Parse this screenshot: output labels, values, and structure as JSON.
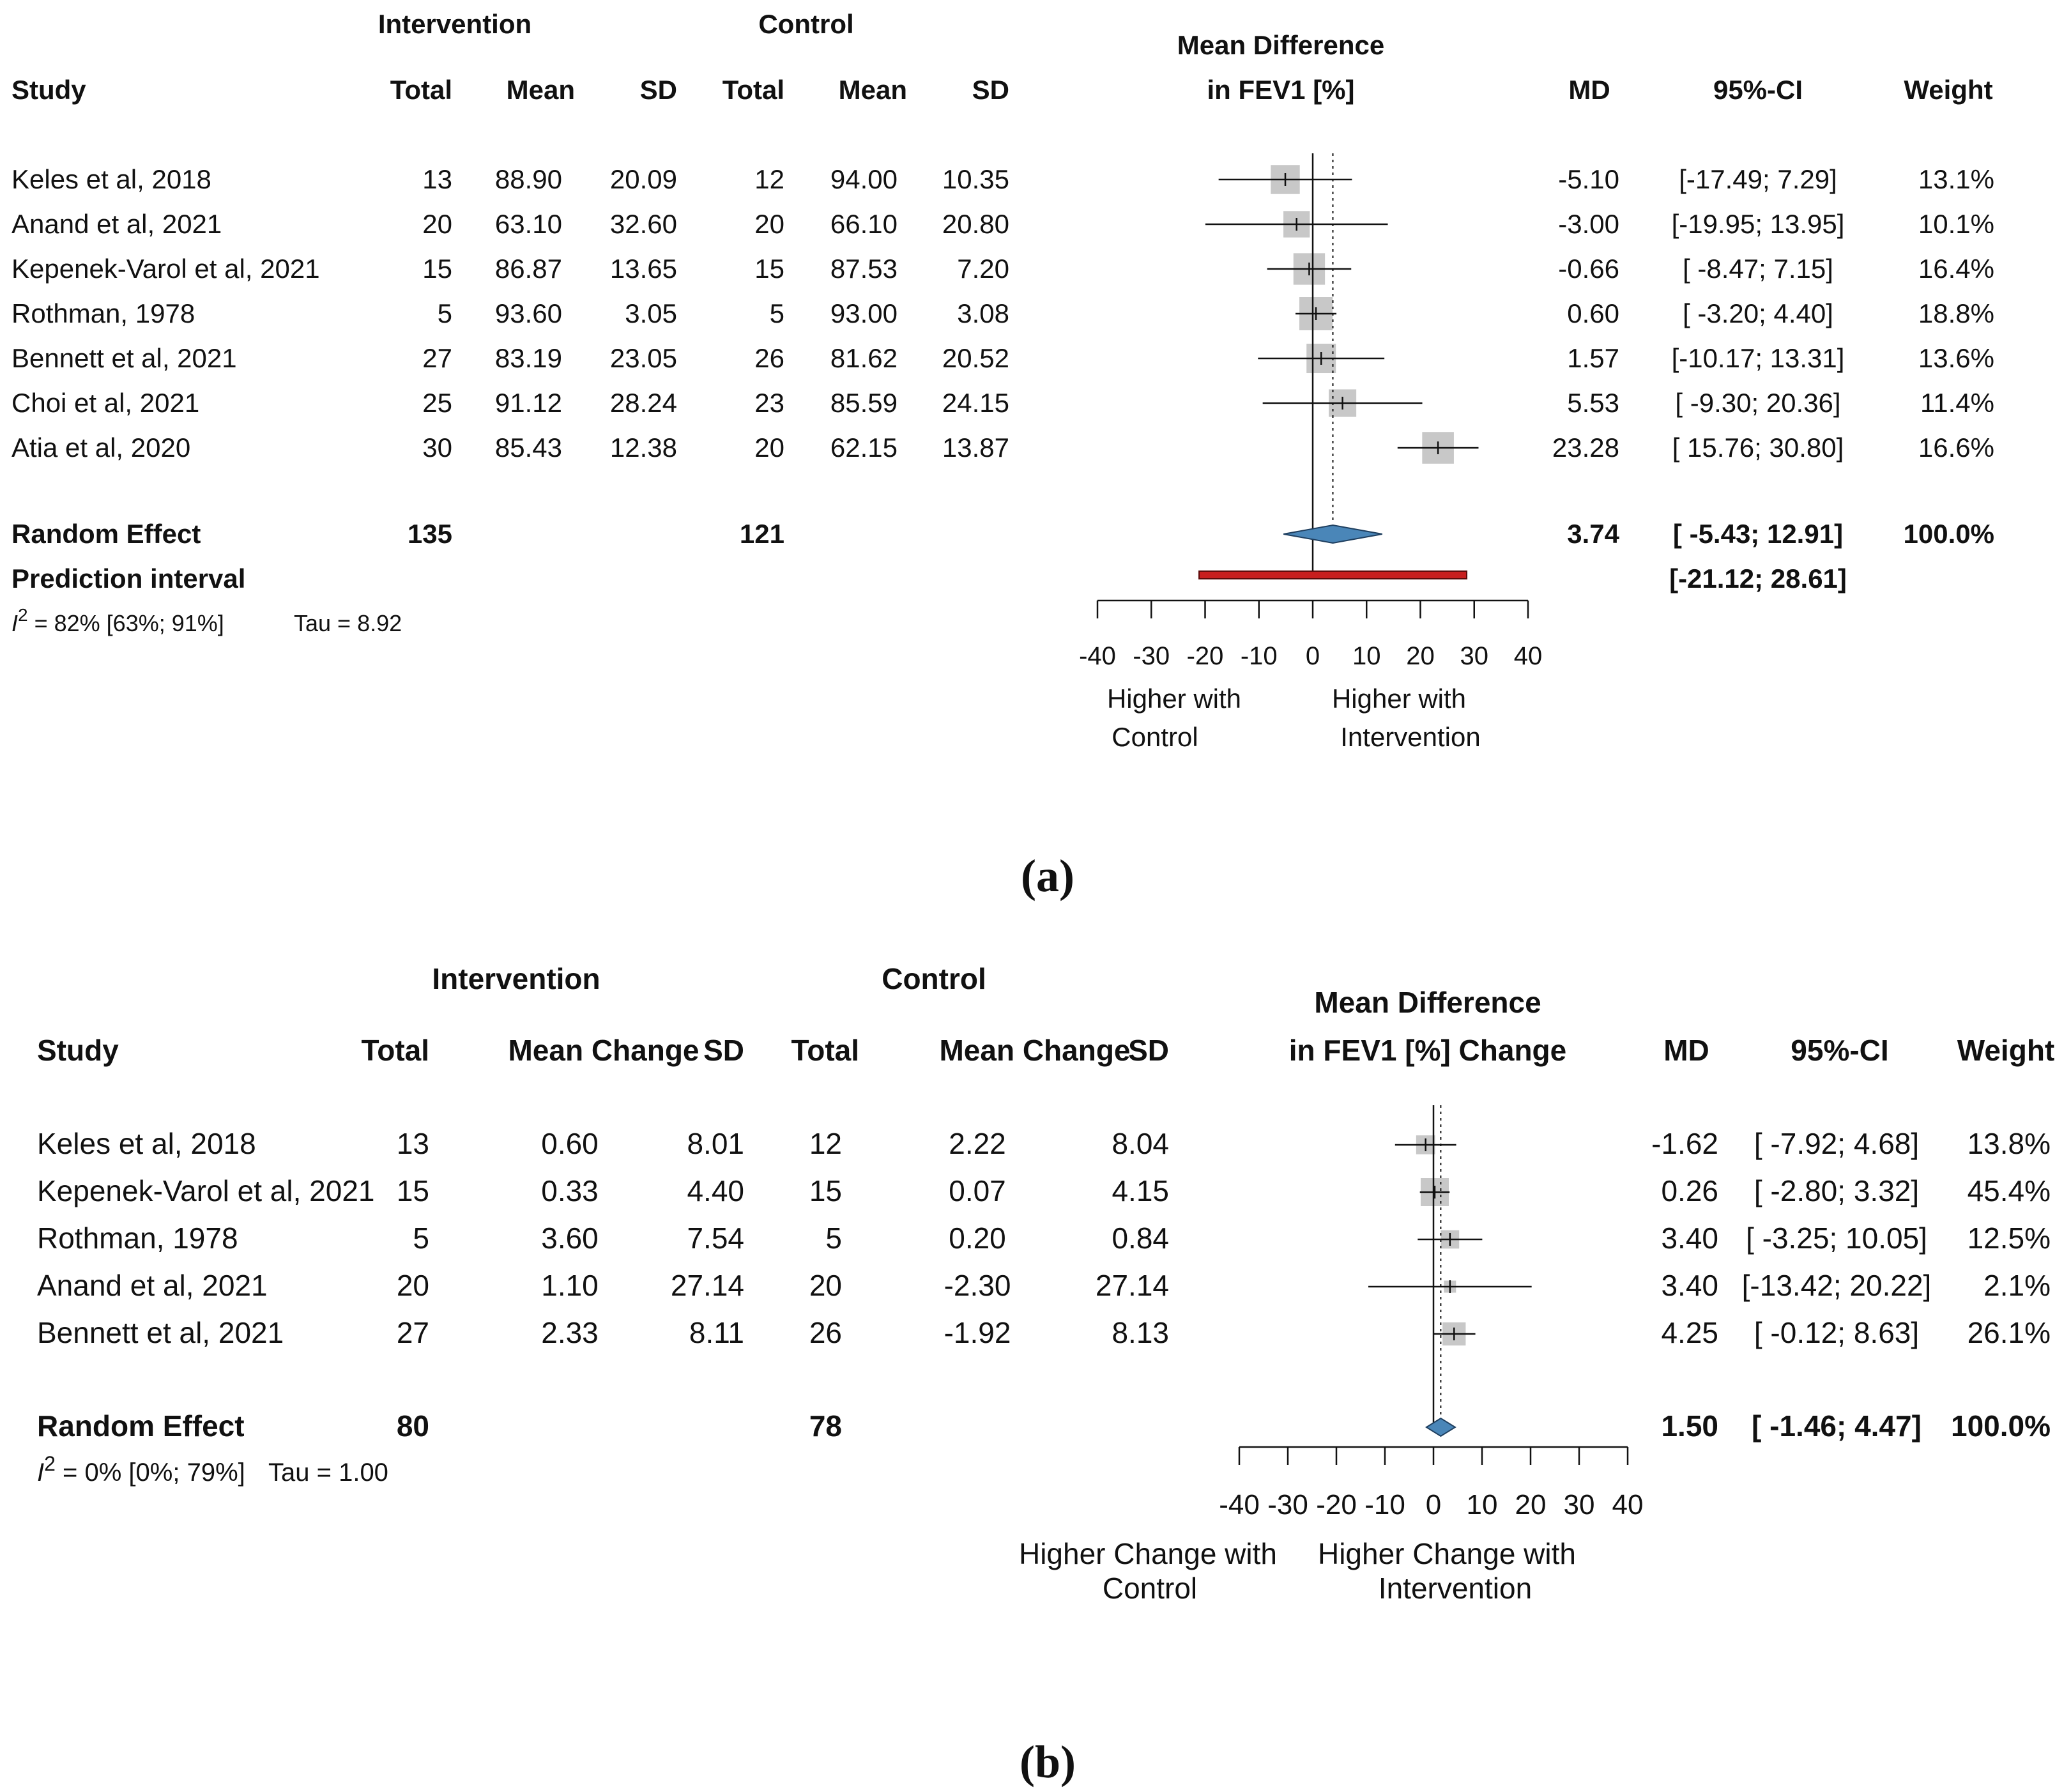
{
  "chart_data": [
    {
      "type": "forest",
      "panel_label": "(a)",
      "group_headers": [
        "Intervention",
        "Control"
      ],
      "columns": [
        "Study",
        "Total",
        "Mean",
        "SD",
        "Total",
        "Mean",
        "SD"
      ],
      "plot_title": [
        "Mean Difference",
        "in FEV1 [%]"
      ],
      "result_columns": [
        "MD",
        "95%-CI",
        "Weight"
      ],
      "studies": [
        {
          "study": "Keles et al, 2018",
          "int_total": "13",
          "int_mean": "88.90",
          "int_sd": "20.09",
          "ctl_total": "12",
          "ctl_mean": "94.00",
          "ctl_sd": "10.35",
          "md": -5.1,
          "lo": -17.49,
          "hi": 7.29,
          "weight": 13.1,
          "md_text": "-5.10",
          "ci_text": "[-17.49;  7.29]",
          "weight_text": "13.1%"
        },
        {
          "study": "Anand et al, 2021",
          "int_total": "20",
          "int_mean": "63.10",
          "int_sd": "32.60",
          "ctl_total": "20",
          "ctl_mean": "66.10",
          "ctl_sd": "20.80",
          "md": -3.0,
          "lo": -19.95,
          "hi": 13.95,
          "weight": 10.1,
          "md_text": "-3.00",
          "ci_text": "[-19.95; 13.95]",
          "weight_text": "10.1%"
        },
        {
          "study": "Kepenek-Varol et al, 2021",
          "int_total": "15",
          "int_mean": "86.87",
          "int_sd": "13.65",
          "ctl_total": "15",
          "ctl_mean": "87.53",
          "ctl_sd": "7.20",
          "md": -0.66,
          "lo": -8.47,
          "hi": 7.15,
          "weight": 16.4,
          "md_text": "-0.66",
          "ci_text": "[ -8.47;  7.15]",
          "weight_text": "16.4%"
        },
        {
          "study": "Rothman, 1978",
          "int_total": "5",
          "int_mean": "93.60",
          "int_sd": "3.05",
          "ctl_total": "5",
          "ctl_mean": "93.00",
          "ctl_sd": "3.08",
          "md": 0.6,
          "lo": -3.2,
          "hi": 4.4,
          "weight": 18.8,
          "md_text": "0.60",
          "ci_text": "[ -3.20;  4.40]",
          "weight_text": "18.8%"
        },
        {
          "study": "Bennett et al, 2021",
          "int_total": "27",
          "int_mean": "83.19",
          "int_sd": "23.05",
          "ctl_total": "26",
          "ctl_mean": "81.62",
          "ctl_sd": "20.52",
          "md": 1.57,
          "lo": -10.17,
          "hi": 13.31,
          "weight": 13.6,
          "md_text": "1.57",
          "ci_text": "[-10.17; 13.31]",
          "weight_text": "13.6%"
        },
        {
          "study": "Choi et al, 2021",
          "int_total": "25",
          "int_mean": "91.12",
          "int_sd": "28.24",
          "ctl_total": "23",
          "ctl_mean": "85.59",
          "ctl_sd": "24.15",
          "md": 5.53,
          "lo": -9.3,
          "hi": 20.36,
          "weight": 11.4,
          "md_text": "5.53",
          "ci_text": "[ -9.30; 20.36]",
          "weight_text": "11.4%"
        },
        {
          "study": "Atia et al, 2020",
          "int_total": "30",
          "int_mean": "85.43",
          "int_sd": "12.38",
          "ctl_total": "20",
          "ctl_mean": "62.15",
          "ctl_sd": "13.87",
          "md": 23.28,
          "lo": 15.76,
          "hi": 30.8,
          "weight": 16.6,
          "md_text": "23.28",
          "ci_text": "[ 15.76; 30.80]",
          "weight_text": "16.6%"
        }
      ],
      "random_effect": {
        "label": "Random Effect",
        "int_total": "135",
        "ctl_total": "121",
        "md": 3.74,
        "lo": -5.43,
        "hi": 12.91,
        "md_text": "3.74",
        "ci_text": "[ -5.43; 12.91]",
        "weight_text": "100.0%"
      },
      "prediction_interval": {
        "label": "Prediction interval",
        "lo": -21.12,
        "hi": 28.61,
        "ci_text": "[-21.12; 28.61]"
      },
      "heterogeneity": {
        "i2_symbol": "I",
        "i2_sup": "2",
        "i2_text": " = 82% [63%; 91%]",
        "tau_text": "Tau = 8.92"
      },
      "xlim": [
        -40,
        40
      ],
      "xticks": [
        -40,
        -30,
        -20,
        -10,
        0,
        10,
        20,
        30,
        40
      ],
      "tick_labels": [
        "-40",
        "-30",
        "-20",
        "-10",
        "0",
        "10",
        "20",
        "30",
        "40"
      ],
      "favours_left": [
        "Higher with",
        "Control"
      ],
      "favours_right": [
        "Higher with",
        "Intervention"
      ],
      "colors": {
        "square": "#c8c8c8",
        "diamond": "#4a86b8",
        "prediction": "#c81e1e",
        "line": "#111111"
      }
    },
    {
      "type": "forest",
      "panel_label": "(b)",
      "group_headers": [
        "Intervention",
        "Control"
      ],
      "columns": [
        "Study",
        "Total",
        "Mean Change",
        "SD",
        "Total",
        "Mean Change",
        "SD"
      ],
      "plot_title": [
        "Mean Difference",
        "in FEV1 [%] Change"
      ],
      "result_columns": [
        "MD",
        "95%-CI",
        "Weight"
      ],
      "studies": [
        {
          "study": "Keles et al, 2018",
          "int_total": "13",
          "int_mean": "0.60",
          "int_sd": "8.01",
          "ctl_total": "12",
          "ctl_mean": "2.22",
          "ctl_sd": "8.04",
          "md": -1.62,
          "lo": -7.92,
          "hi": 4.68,
          "weight": 13.8,
          "md_text": "-1.62",
          "ci_text": "[ -7.92;  4.68]",
          "weight_text": "13.8%"
        },
        {
          "study": "Kepenek-Varol et al, 2021",
          "int_total": "15",
          "int_mean": "0.33",
          "int_sd": "4.40",
          "ctl_total": "15",
          "ctl_mean": "0.07",
          "ctl_sd": "4.15",
          "md": 0.26,
          "lo": -2.8,
          "hi": 3.32,
          "weight": 45.4,
          "md_text": "0.26",
          "ci_text": "[ -2.80;  3.32]",
          "weight_text": "45.4%"
        },
        {
          "study": "Rothman, 1978",
          "int_total": "5",
          "int_mean": "3.60",
          "int_sd": "7.54",
          "ctl_total": "5",
          "ctl_mean": "0.20",
          "ctl_sd": "0.84",
          "md": 3.4,
          "lo": -3.25,
          "hi": 10.05,
          "weight": 12.5,
          "md_text": "3.40",
          "ci_text": "[ -3.25; 10.05]",
          "weight_text": "12.5%"
        },
        {
          "study": "Anand et al, 2021",
          "int_total": "20",
          "int_mean": "1.10",
          "int_sd": "27.14",
          "ctl_total": "20",
          "ctl_mean": "-2.30",
          "ctl_sd": "27.14",
          "md": 3.4,
          "lo": -13.42,
          "hi": 20.22,
          "weight": 2.1,
          "md_text": "3.40",
          "ci_text": "[-13.42; 20.22]",
          "weight_text": "2.1%"
        },
        {
          "study": "Bennett et al, 2021",
          "int_total": "27",
          "int_mean": "2.33",
          "int_sd": "8.11",
          "ctl_total": "26",
          "ctl_mean": "-1.92",
          "ctl_sd": "8.13",
          "md": 4.25,
          "lo": -0.12,
          "hi": 8.63,
          "weight": 26.1,
          "md_text": "4.25",
          "ci_text": "[ -0.12;  8.63]",
          "weight_text": "26.1%"
        }
      ],
      "random_effect": {
        "label": "Random Effect",
        "int_total": "80",
        "ctl_total": "78",
        "md": 1.5,
        "lo": -1.46,
        "hi": 4.47,
        "md_text": "1.50",
        "ci_text": "[ -1.46;  4.47]",
        "weight_text": "100.0%"
      },
      "heterogeneity": {
        "i2_symbol": "I",
        "i2_sup": "2",
        "i2_text": " = 0% [0%; 79%]",
        "tau_text": "Tau = 1.00"
      },
      "xlim": [
        -40,
        40
      ],
      "xticks": [
        -40,
        -30,
        -20,
        -10,
        0,
        10,
        20,
        30,
        40
      ],
      "tick_labels": [
        "-40",
        "-30",
        "-20",
        "-10",
        "0",
        "10",
        "20",
        "30",
        "40"
      ],
      "favours_left": [
        "Higher Change with",
        "Control"
      ],
      "favours_right": [
        "Higher Change with",
        "Intervention"
      ],
      "colors": {
        "square": "#c8c8c8",
        "diamond": "#4a86b8",
        "prediction": "#c81e1e",
        "line": "#111111"
      }
    }
  ]
}
